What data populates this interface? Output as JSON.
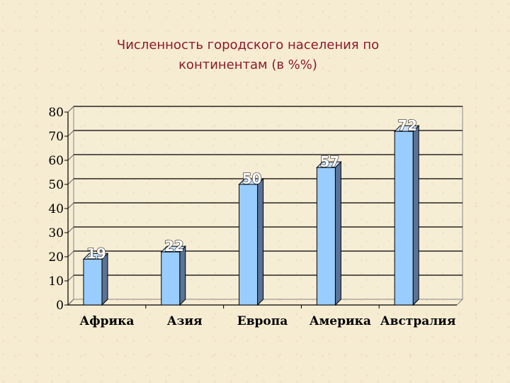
{
  "slide": {
    "title_line1": "Численность городского населения по",
    "title_line2": "континентам (в %%)"
  },
  "chart_data": {
    "type": "bar",
    "title": "Численность городского населения по континентам (в %%)",
    "categories": [
      "Африка",
      "Азия",
      "Европа",
      "Америка",
      "Австралия"
    ],
    "values": [
      19,
      22,
      50,
      57,
      72
    ],
    "ylim": [
      0,
      80
    ],
    "yticks": [
      0,
      10,
      20,
      30,
      40,
      50,
      60,
      70,
      80
    ],
    "grid": true,
    "style": "3d",
    "colors": {
      "bar_front": "#99ccff",
      "bar_side": "#5a7396",
      "bar_top": "#c8e2ff",
      "gridline": "#000000"
    }
  }
}
